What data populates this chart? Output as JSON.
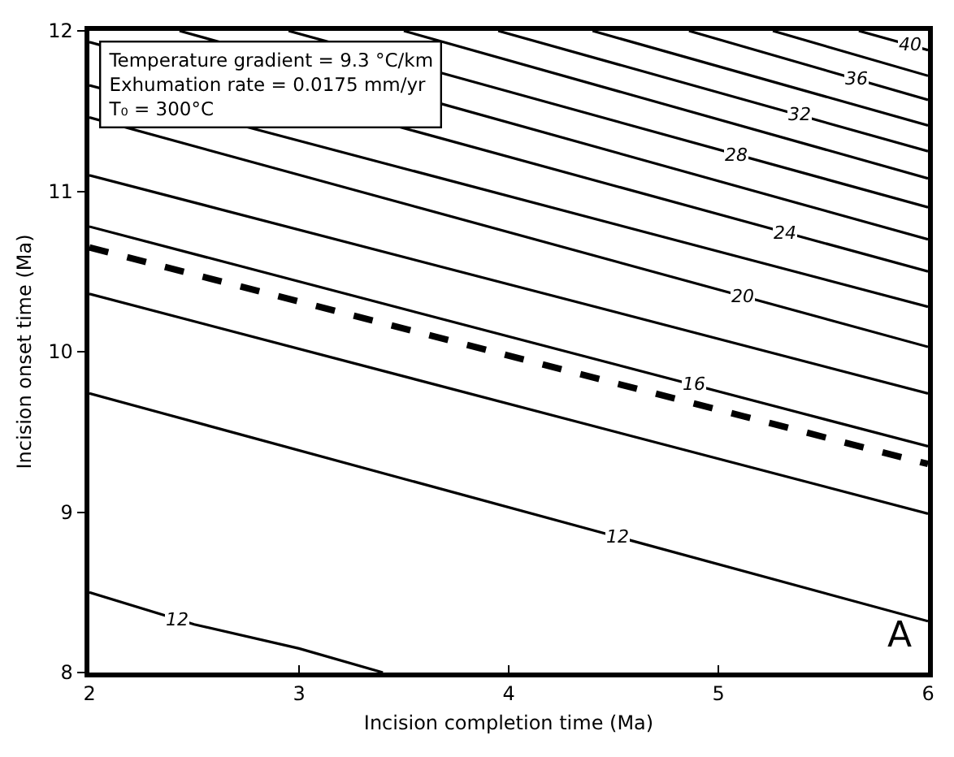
{
  "chart_data": {
    "type": "line",
    "xlabel": "Incision completion time (Ma)",
    "ylabel": "Incision onset time (Ma)",
    "xlim": [
      2,
      6
    ],
    "ylim": [
      8,
      12
    ],
    "xticks": [
      2,
      3,
      4,
      5,
      6
    ],
    "yticks": [
      8,
      9,
      10,
      11,
      12
    ],
    "legend": false,
    "marker": "none",
    "annotations": [
      "Temperature gradient = 9.3 °C/km",
      "Exhumation rate = 0.0175 mm/yr",
      "T₀ = 300°C",
      "A"
    ],
    "series": [
      {
        "name": "40",
        "color": "#000000",
        "x": [
          5.67,
          6
        ],
        "values": [
          12,
          11.88
        ]
      },
      {
        "color": "#000000",
        "x": [
          5.26,
          6
        ],
        "values": [
          12,
          11.72
        ]
      },
      {
        "name": "36",
        "color": "#000000",
        "x": [
          4.86,
          6
        ],
        "values": [
          12,
          11.57
        ]
      },
      {
        "color": "#000000",
        "x": [
          4.4,
          6
        ],
        "values": [
          12,
          11.41
        ]
      },
      {
        "name": "32",
        "color": "#000000",
        "x": [
          3.95,
          6
        ],
        "values": [
          12,
          11.25
        ]
      },
      {
        "color": "#000000",
        "x": [
          3.5,
          6
        ],
        "values": [
          12,
          11.08
        ]
      },
      {
        "name": "28",
        "color": "#000000",
        "x": [
          2.95,
          6
        ],
        "values": [
          12,
          10.9
        ]
      },
      {
        "color": "#000000",
        "x": [
          2.43,
          6
        ],
        "values": [
          12,
          10.7
        ]
      },
      {
        "name": "24",
        "color": "#000000",
        "x": [
          2,
          6
        ],
        "values": [
          11.93,
          10.5
        ]
      },
      {
        "color": "#000000",
        "x": [
          2,
          6
        ],
        "values": [
          11.66,
          10.28
        ]
      },
      {
        "name": "20",
        "color": "#000000",
        "x": [
          2,
          6
        ],
        "values": [
          11.46,
          10.03
        ]
      },
      {
        "color": "#000000",
        "x": [
          2,
          6
        ],
        "values": [
          11.1,
          9.74
        ]
      },
      {
        "name": "16",
        "color": "#000000",
        "x": [
          2,
          6
        ],
        "values": [
          10.78,
          9.41
        ]
      },
      {
        "color": "#000000",
        "x": [
          2,
          6
        ],
        "values": [
          10.36,
          8.99
        ]
      },
      {
        "name": "12",
        "color": "#000000",
        "x": [
          2,
          6
        ],
        "values": [
          9.74,
          8.32
        ]
      },
      {
        "name": "12",
        "color": "#000000",
        "x": [
          2,
          2.5,
          3,
          3.4
        ],
        "values": [
          8.5,
          8.3,
          8.15,
          8.0
        ]
      },
      {
        "color": "#000000",
        "line_style": "dashed",
        "x": [
          2,
          6
        ],
        "values": [
          10.65,
          9.3
        ]
      }
    ]
  }
}
